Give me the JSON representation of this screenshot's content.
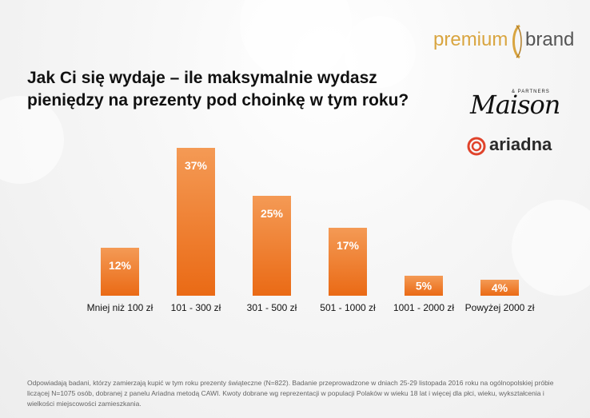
{
  "title": "Jak Ci się wydaje – ile maksymalnie wydasz pieniędzy na prezenty pod choinkę w tym roku?",
  "logos": {
    "premium_word": "premium",
    "brand_word": "brand",
    "maison_tag": "& PARTNERS",
    "maison_word": "Maison",
    "ariadna_word": "ariadna"
  },
  "chart_data": {
    "type": "bar",
    "categories": [
      "Mniej niż 100 zł",
      "101 - 300 zł",
      "301 - 500 zł",
      "501 - 1000 zł",
      "1001 - 2000 zł",
      "Powyżej 2000 zł"
    ],
    "values": [
      12,
      37,
      25,
      17,
      5,
      4
    ],
    "value_labels": [
      "12%",
      "37%",
      "25%",
      "17%",
      "5%",
      "4%"
    ],
    "unit": "%",
    "ylim": [
      0,
      37
    ],
    "grid": false,
    "legend": "none",
    "bar_color": "#f07b28"
  },
  "colors": {
    "bar_top": "#f49a55",
    "bar_bottom": "#ea6a15",
    "premium_gold": "#d9a540",
    "ariadna_red": "#e0432b"
  },
  "footnote": "Odpowiadają badani, którzy zamierzają kupić w tym roku prezenty świąteczne (N=822). Badanie przeprowadzone w dniach 25-29 listopada 2016 roku na ogólnopolskiej próbie liczącej N=1075 osób, dobranej z panelu Ariadna metodą CAWI. Kwoty dobrane wg reprezentacji w populacji Polaków w wieku 18 lat i więcej dla płci, wieku, wykształcenia i wielkości miejscowości zamieszkania."
}
